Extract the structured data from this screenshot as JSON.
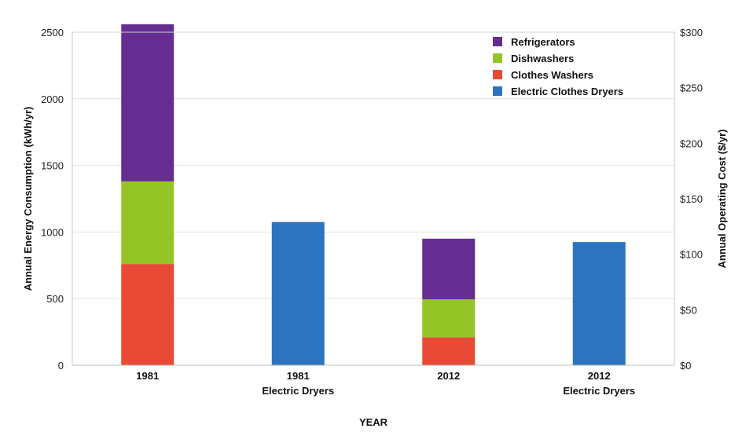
{
  "chart_data": {
    "type": "bar",
    "stacked": true,
    "categories": [
      {
        "line1": "1981",
        "line2": ""
      },
      {
        "line1": "1981",
        "line2": "Electric Dryers"
      },
      {
        "line1": "2012",
        "line2": ""
      },
      {
        "line1": "2012",
        "line2": "Electric Dryers"
      }
    ],
    "series": [
      {
        "name": "Clothes Washers",
        "color": "#e84a35",
        "values": [
          760,
          0,
          210,
          0
        ]
      },
      {
        "name": "Dishwashers",
        "color": "#94c426",
        "values": [
          620,
          0,
          285,
          0
        ]
      },
      {
        "name": "Refrigerators",
        "color": "#652d91",
        "values": [
          1180,
          0,
          455,
          0
        ]
      },
      {
        "name": "Electric Clothes Dryers",
        "color": "#2c74c0",
        "values": [
          0,
          1075,
          0,
          925
        ]
      }
    ],
    "legend_order": [
      "Refrigerators",
      "Dishwashers",
      "Clothes Washers",
      "Electric Clothes Dryers"
    ],
    "legend_position": "top-right",
    "xlabel": "YEAR",
    "ylabel": "Annual Energy Consumption (kWh/yr)",
    "ylabel_right": "Annual Operating Cost ($/yr)",
    "ylim": [
      0,
      2500
    ],
    "yticks": [
      "0",
      "500",
      "1000",
      "1500",
      "2000",
      "2500"
    ],
    "ylim_right": [
      0,
      300
    ],
    "yticks_right": [
      "$0",
      "$50",
      "$100",
      "$150",
      "$200",
      "$250",
      "$300"
    ],
    "grid": true
  }
}
